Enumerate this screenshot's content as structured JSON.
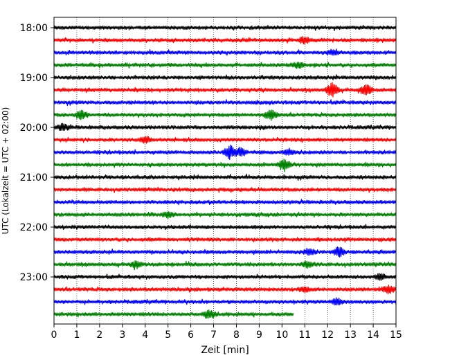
{
  "chart_data": {
    "type": "line",
    "title": "",
    "xlabel": "Zeit  [min]",
    "ylabel": "UTC (Lokalzeit = UTC + 02:00)",
    "xlim": [
      0,
      15
    ],
    "x_ticks": [
      "0",
      "1",
      "2",
      "3",
      "4",
      "5",
      "6",
      "7",
      "8",
      "9",
      "10",
      "11",
      "12",
      "13",
      "14",
      "15"
    ],
    "y_ticks": [
      "18:00",
      "19:00",
      "20:00",
      "21:00",
      "22:00",
      "23:00"
    ],
    "grid": "vertical dotted",
    "trace_interval_min": 15,
    "trace_colors": [
      "#000000",
      "#ff0000",
      "#0000ff",
      "#008000"
    ],
    "traces": [
      {
        "start": "18:00",
        "end_min": 15,
        "events": []
      },
      {
        "start": "18:15",
        "end_min": 15,
        "events": [
          {
            "t": 11.0,
            "amp": 4
          }
        ]
      },
      {
        "start": "18:30",
        "end_min": 15,
        "events": [
          {
            "t": 12.2,
            "amp": 3
          }
        ]
      },
      {
        "start": "18:45",
        "end_min": 15,
        "events": [
          {
            "t": 10.7,
            "amp": 3
          }
        ]
      },
      {
        "start": "19:00",
        "end_min": 15,
        "events": []
      },
      {
        "start": "19:15",
        "end_min": 15,
        "events": [
          {
            "t": 12.2,
            "amp": 10
          },
          {
            "t": 13.7,
            "amp": 7
          }
        ]
      },
      {
        "start": "19:30",
        "end_min": 15,
        "events": []
      },
      {
        "start": "19:45",
        "end_min": 15,
        "events": [
          {
            "t": 1.2,
            "amp": 6
          },
          {
            "t": 9.5,
            "amp": 7
          }
        ]
      },
      {
        "start": "20:00",
        "end_min": 15,
        "events": [
          {
            "t": 0.4,
            "amp": 4
          }
        ]
      },
      {
        "start": "20:15",
        "end_min": 15,
        "events": [
          {
            "t": 4.0,
            "amp": 4
          }
        ]
      },
      {
        "start": "20:30",
        "end_min": 15,
        "events": [
          {
            "t": 7.7,
            "amp": 9
          },
          {
            "t": 8.2,
            "amp": 6
          },
          {
            "t": 10.3,
            "amp": 4
          }
        ]
      },
      {
        "start": "20:45",
        "end_min": 15,
        "events": [
          {
            "t": 10.1,
            "amp": 8
          }
        ]
      },
      {
        "start": "21:00",
        "end_min": 15,
        "events": []
      },
      {
        "start": "21:15",
        "end_min": 15,
        "events": []
      },
      {
        "start": "21:30",
        "end_min": 15,
        "events": []
      },
      {
        "start": "21:45",
        "end_min": 15,
        "events": [
          {
            "t": 5.0,
            "amp": 4
          }
        ]
      },
      {
        "start": "22:00",
        "end_min": 15,
        "events": []
      },
      {
        "start": "22:15",
        "end_min": 15,
        "events": []
      },
      {
        "start": "22:30",
        "end_min": 15,
        "events": [
          {
            "t": 12.5,
            "amp": 6
          },
          {
            "t": 11.2,
            "amp": 4
          }
        ]
      },
      {
        "start": "22:45",
        "end_min": 15,
        "events": [
          {
            "t": 3.6,
            "amp": 4
          },
          {
            "t": 11.1,
            "amp": 4
          }
        ]
      },
      {
        "start": "23:00",
        "end_min": 15,
        "events": [
          {
            "t": 14.3,
            "amp": 4
          }
        ]
      },
      {
        "start": "23:15",
        "end_min": 15,
        "events": [
          {
            "t": 11.0,
            "amp": 3
          },
          {
            "t": 14.7,
            "amp": 5
          }
        ]
      },
      {
        "start": "23:30",
        "end_min": 15,
        "events": [
          {
            "t": 12.4,
            "amp": 4
          }
        ]
      },
      {
        "start": "23:45",
        "end_min": 10.5,
        "events": [
          {
            "t": 6.8,
            "amp": 6
          }
        ]
      }
    ]
  }
}
